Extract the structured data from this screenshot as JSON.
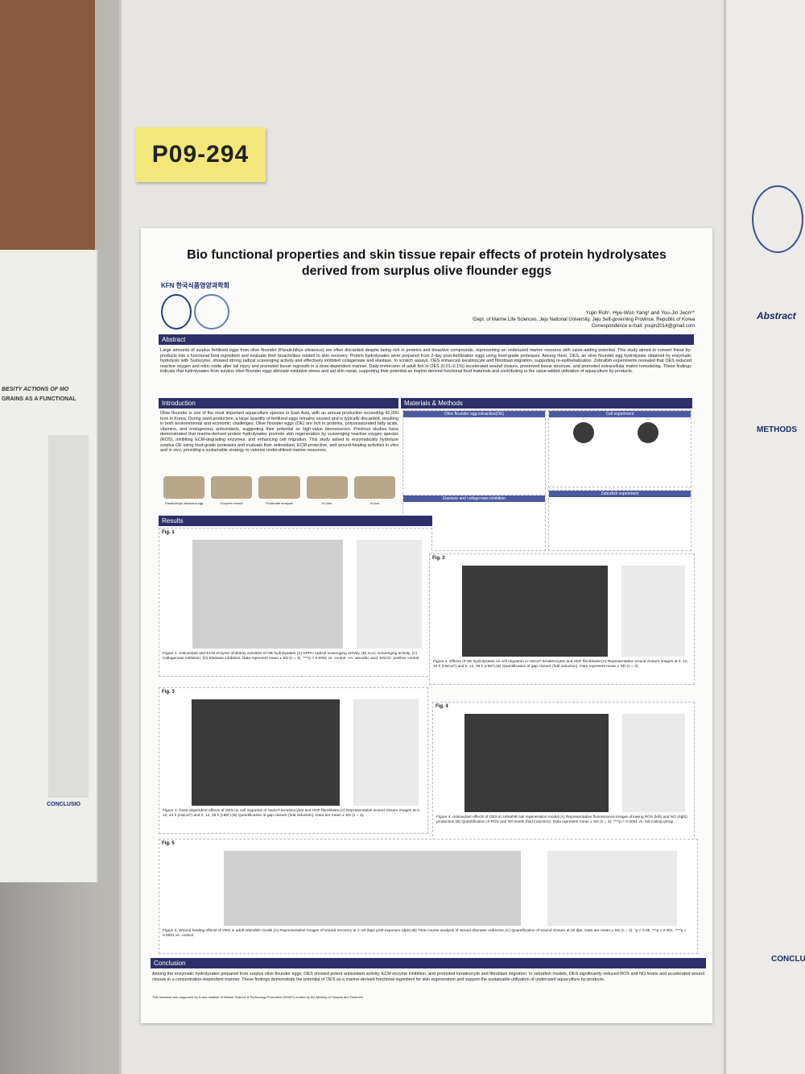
{
  "label": "P09-294",
  "left_poster": {
    "title_line1": "BESITY ACTIONS OF MO",
    "title_line2": "GRAINS AS A FUNCTIONAL",
    "conclusion": "CONCLUSIO"
  },
  "right_poster": {
    "abstract": "Abstract",
    "methods": "METHODS",
    "conclusion": "CONCLUSIO"
  },
  "header": {
    "title": "Bio functional properties and skin tissue repair effects of protein hydrolysates derived from surplus olive flounder eggs",
    "society_logo": "KFN",
    "society": "한국식품영양과학회",
    "authors": "Yujin Roh¹, Hye-Won Yang¹ and You-Jin Jeon¹*",
    "affiliation": "¹Dept. of Marine Life Sciences, Jeju National University, Jeju Self-governing Province, Republic of Korea",
    "correspondence": "Correspondence e-mail: youjin2014@gmail.com"
  },
  "abstract": {
    "heading": "Abstract",
    "text": "Large amounts of surplus fertilized eggs from olive flounder (Paralichthys olivaceus) are often discarded despite being rich in proteins and bioactive compounds, representing an underused marine resource with value-adding potential. This study aimed to convert these by-products into a functional food ingredient and evaluate their bioactivities related to skin recovery. Protein hydrolysates were prepared from 2-day post-fertilization eggs using food-grade proteases. Among them, OES, an olive flounder egg hydrolysate obtained by enzymatic hydrolysis with Sumizyme, showed strong radical scavenging activity and effectively inhibited collagenase and elastase. In scratch assays, OES enhanced keratinocyte and fibroblast migration, supporting re-epithelialization. Zebrafish experiments revealed that OES reduced reactive oxygen and nitric oxide after tail injury and promoted tissue regrowth in a dose-dependent manner. Daily immersion of adult fish in OES (0.01–0.1%) accelerated wound closure, preserved tissue structure, and promoted extracellular matrix remodeling. These findings indicate that hydrolysates from surplus olive flounder eggs alleviate oxidative stress and aid skin repair, supporting their potential as marine-derived functional food materials and contributing to the value-added utilization of aquaculture by-products."
  },
  "introduction": {
    "heading": "Introduction",
    "text": "Olive flounder is one of the most important aquaculture species in East Asia, with an annual production exceeding 42,000 tons in Korea. During seed production, a large quantity of fertilized eggs remains unused and is typically discarded, resulting in both environmental and economic challenges. Olive flounder eggs (OE) are rich in proteins, polyunsaturated fatty acids, vitamins, and endogenous antioxidants, suggesting their potential as high-value bioresources. Previous studies have demonstrated that marine-derived protein hydrolysates promote skin regeneration by scavenging reactive oxygen species (ROS), inhibiting ECM-degrading enzymes, and enhancing cell migration. This study aimed to enzymatically hydrolyze surplus OE using food-grade proteases and evaluate their antioxidant, ECM-protective, and wound-healing activities in vitro and in vivo, providing a sustainable strategy to valorize underutilized marine resources.",
    "images": [
      "Paralichthys olivaceus egg",
      "Enzyme extract",
      "Proximate analysis",
      "In vitro",
      "In vivo"
    ]
  },
  "methods": {
    "heading": "Materials & Methods",
    "panels": [
      "Olive flounder egg extraction(OE)",
      "Cell experiment",
      "Elastase and collagenase inhibition",
      "Zebrafish experiment"
    ]
  },
  "results": {
    "heading": "Results",
    "figures": [
      {
        "label": "Fig. 1",
        "caption": "Figure 1. Antioxidant and ECM enzyme inhibitory activities of OE hydrolysates.(A) DPPH radical scavenging activity, (B) H₂O₂ scavenging activity, (C) Collagenase inhibition, (D) Elastase inhibition. Data represent mean ± SD (n = 3). ****p < 0.0001 vs. control. AA: ascorbic acid, EGCG: positive control."
      },
      {
        "label": "Fig. 2",
        "caption": "Figure 2. Effects of OE hydrolysates on cell migration in HaCaT keratinocytes and HDF fibroblasts.(A) Representative wound closure images at 0, 12, 24 h (HaCaT) and 0, 12, 36 h (HDF).(B) Quantification of gap closure (fold induction). Data represent mean ± SD (n = 3)."
      },
      {
        "label": "Fig. 3",
        "caption": "Figure 3. Dose-dependent effects of OES on cell migration in HaCaT keratinocytes and HDF fibroblasts.(A) Representative wound closure images at 0, 12, 24 h (HaCaT) and 0, 12, 36 h (HDF).(B) Quantification of gap closure (fold induction). Data are mean ± SD (n = 3)."
      },
      {
        "label": "Fig. 4",
        "caption": "Figure 4. Antioxidant effects of OES in zebrafish tail regeneration model.(A) Representative fluorescence images showing ROS (left) and NO (right) production.(B) Quantification of ROS and NO levels (fold induction). Data represent mean ± SD (n = 3). ****p < 0.0001 vs. tail-cutting group."
      },
      {
        "label": "Fig. 5",
        "caption": "Figure 5. Wound healing effects of OES in adult zebrafish model.(A) Representative images of wound recovery at 1–20 days post-exposure (dpe).(B) Time-course analysis of wound diameter reduction.(C) Quantification of wound closure at 20 dpe. Data are mean ± SD (n = 3). *p < 0.05, ***p < 0.001, ****p < 0.0001 vs. control."
      }
    ]
  },
  "conclusion": {
    "heading": "Conclusion",
    "text": "Among the enzymatic hydrolysates prepared from surplus olive flounder eggs, OES showed potent antioxidant activity, ECM enzyme inhibition, and promoted keratinocyte and fibroblast migration. In zebrafish models, OES significantly reduced ROS and NO levels and accelerated wound closure in a concentration-dependent manner. These findings demonstrate the potential of OES as a marine-derived functional ingredient for skin regeneration and support the sustainable utilization of underused aquaculture by-products."
  },
  "footer": "This research was supported by Korea Institute of Marine Science & Technology Promotion (KIMST) funded by the Ministry of Oceans and Fisheries."
}
